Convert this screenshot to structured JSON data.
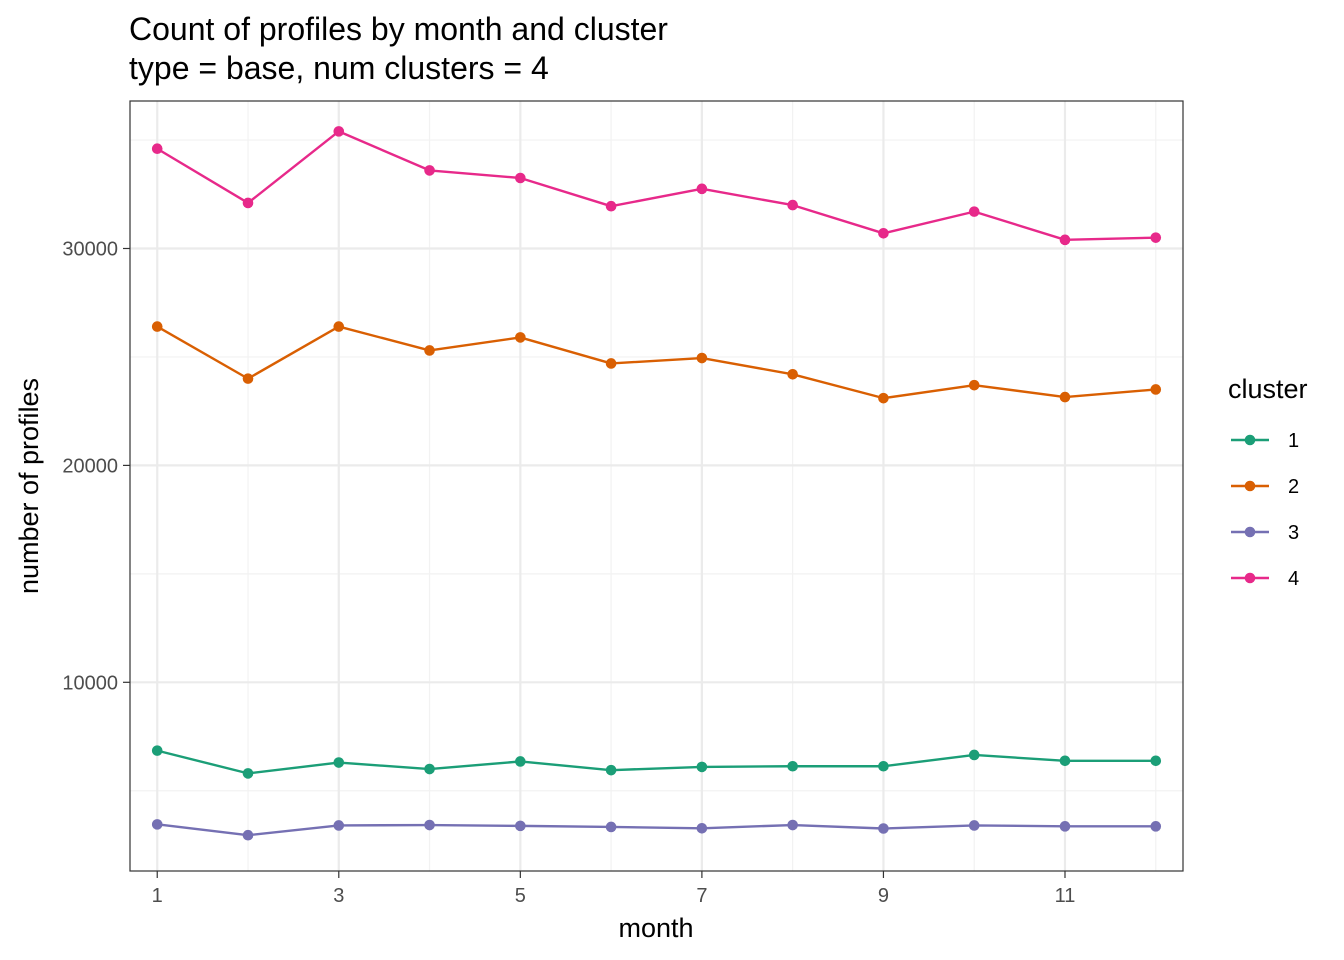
{
  "chart_data": {
    "type": "line",
    "title": "Count of profiles by month and cluster",
    "subtitle": "type = base, num clusters = 4",
    "xlabel": "month",
    "ylabel": "number of profiles",
    "x": [
      1,
      2,
      3,
      4,
      5,
      6,
      7,
      8,
      9,
      10,
      11,
      12
    ],
    "xlim": [
      0.7,
      12.3
    ],
    "ylim": [
      1300,
      36800
    ],
    "x_ticks": [
      1,
      3,
      5,
      7,
      9,
      11
    ],
    "y_ticks": [
      10000,
      20000,
      30000
    ],
    "x_tick_labels": [
      "1",
      "3",
      "5",
      "7",
      "9",
      "11"
    ],
    "y_tick_labels": [
      "10000",
      "20000",
      "30000"
    ],
    "grid": true,
    "legend": {
      "title": "cluster",
      "position": "right"
    },
    "series": [
      {
        "name": "1",
        "color": "#1b9e77",
        "values": [
          6850,
          5800,
          6300,
          6000,
          6350,
          5950,
          6100,
          6130,
          6130,
          6650,
          6380,
          6380
        ]
      },
      {
        "name": "2",
        "color": "#d95f02",
        "values": [
          26400,
          24000,
          26400,
          25300,
          25900,
          24700,
          24950,
          24200,
          23100,
          23700,
          23150,
          23500
        ]
      },
      {
        "name": "3",
        "color": "#7570b3",
        "values": [
          3450,
          2950,
          3400,
          3420,
          3380,
          3330,
          3270,
          3420,
          3260,
          3400,
          3360,
          3360
        ]
      },
      {
        "name": "4",
        "color": "#e7298a",
        "values": [
          34600,
          32100,
          35400,
          33600,
          33250,
          31950,
          32750,
          32000,
          30700,
          31700,
          30400,
          30500
        ]
      }
    ]
  }
}
